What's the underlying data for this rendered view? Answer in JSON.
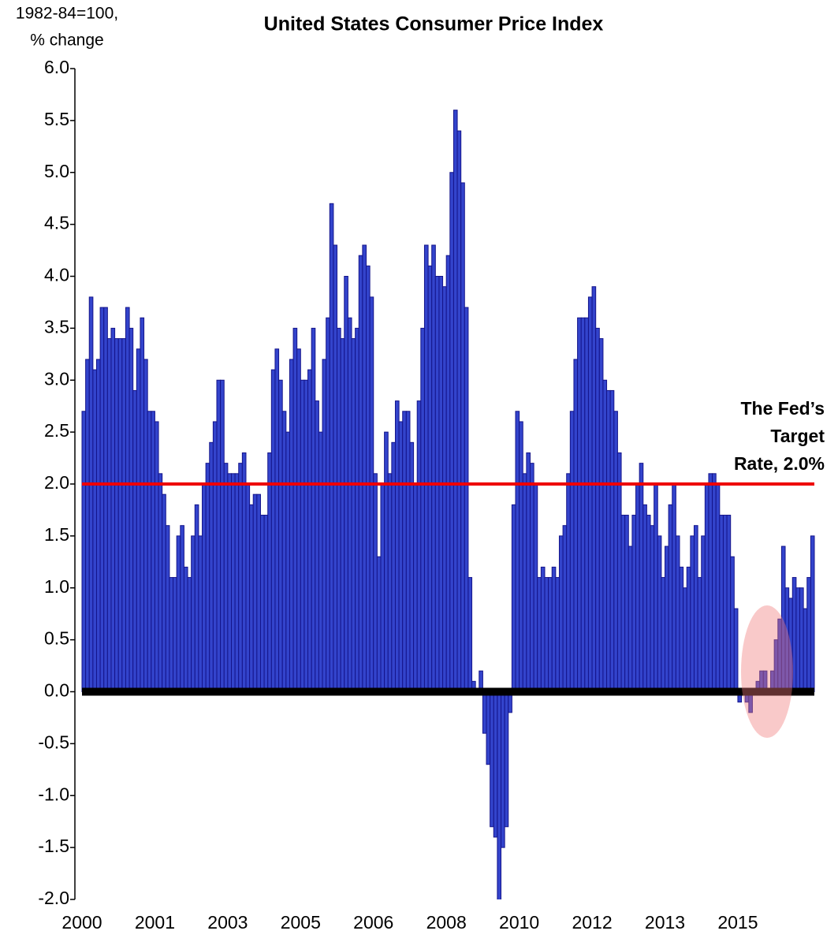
{
  "chart_data": {
    "type": "bar",
    "title": "United States Consumer Price Index",
    "y_axis_label": [
      "1982-84=100,",
      "% change"
    ],
    "annotation": [
      "The Fed’s",
      "Target",
      "Rate, 2.0%"
    ],
    "target": 2.0,
    "target_color": "#ee0000",
    "color": "#3344cc",
    "edge_color": "#14148a",
    "grid": false,
    "categories": [
      "2000",
      null,
      null,
      null,
      null,
      null,
      null,
      null,
      null,
      null,
      null,
      null,
      null,
      null,
      null,
      null,
      null,
      null,
      null,
      null,
      "2001",
      null,
      null,
      null,
      null,
      null,
      null,
      null,
      null,
      null,
      null,
      null,
      null,
      null,
      null,
      null,
      null,
      null,
      null,
      null,
      "2003",
      null,
      null,
      null,
      null,
      null,
      null,
      null,
      null,
      null,
      null,
      null,
      null,
      null,
      null,
      null,
      null,
      null,
      null,
      null,
      "2005",
      null,
      null,
      null,
      null,
      null,
      null,
      null,
      null,
      null,
      null,
      null,
      null,
      null,
      null,
      null,
      null,
      null,
      null,
      null,
      "2006",
      null,
      null,
      null,
      null,
      null,
      null,
      null,
      null,
      null,
      null,
      null,
      null,
      null,
      null,
      null,
      null,
      null,
      null,
      null,
      "2008",
      null,
      null,
      null,
      null,
      null,
      null,
      null,
      null,
      null,
      null,
      null,
      null,
      null,
      null,
      null,
      null,
      null,
      null,
      null,
      "2010",
      null,
      null,
      null,
      null,
      null,
      null,
      null,
      null,
      null,
      null,
      null,
      null,
      null,
      null,
      null,
      null,
      null,
      null,
      null,
      "2012",
      null,
      null,
      null,
      null,
      null,
      null,
      null,
      null,
      null,
      null,
      null,
      null,
      null,
      null,
      null,
      null,
      null,
      null,
      null,
      "2013",
      null,
      null,
      null,
      null,
      null,
      null,
      null,
      null,
      null,
      null,
      null,
      null,
      null,
      null,
      null,
      null,
      null,
      null,
      null,
      "2015",
      null,
      null,
      null,
      null,
      null,
      null,
      null,
      null,
      null,
      null,
      null,
      null,
      null,
      null,
      null,
      null,
      null,
      null,
      null,
      null
    ],
    "values": [
      2.7,
      3.2,
      3.8,
      3.1,
      3.2,
      3.7,
      3.7,
      3.4,
      3.5,
      3.4,
      3.4,
      3.4,
      3.7,
      3.5,
      2.9,
      3.3,
      3.6,
      3.2,
      2.7,
      2.7,
      2.6,
      2.1,
      1.9,
      1.6,
      1.1,
      1.1,
      1.5,
      1.6,
      1.2,
      1.1,
      1.5,
      1.8,
      1.5,
      2.0,
      2.2,
      2.4,
      2.6,
      3.0,
      3.0,
      2.2,
      2.1,
      2.1,
      2.1,
      2.2,
      2.3,
      2.0,
      1.8,
      1.9,
      1.9,
      1.7,
      1.7,
      2.3,
      3.1,
      3.3,
      3.0,
      2.7,
      2.5,
      3.2,
      3.5,
      3.3,
      3.0,
      3.0,
      3.1,
      3.5,
      2.8,
      2.5,
      3.2,
      3.6,
      4.7,
      4.3,
      3.5,
      3.4,
      4.0,
      3.6,
      3.4,
      3.5,
      4.2,
      4.3,
      4.1,
      3.8,
      2.1,
      1.3,
      2.0,
      2.5,
      2.1,
      2.4,
      2.8,
      2.6,
      2.7,
      2.7,
      2.4,
      2.0,
      2.8,
      3.5,
      4.3,
      4.1,
      4.3,
      4.0,
      4.0,
      3.9,
      4.2,
      5.0,
      5.6,
      5.4,
      4.9,
      3.7,
      1.1,
      0.1,
      0.0,
      0.2,
      -0.4,
      -0.7,
      -1.3,
      -1.4,
      -2.1,
      -1.5,
      -1.3,
      -0.2,
      1.8,
      2.7,
      2.6,
      2.1,
      2.3,
      2.2,
      2.0,
      1.1,
      1.2,
      1.1,
      1.1,
      1.2,
      1.1,
      1.5,
      1.6,
      2.1,
      2.7,
      3.2,
      3.6,
      3.6,
      3.6,
      3.8,
      3.9,
      3.5,
      3.4,
      3.0,
      2.9,
      2.9,
      2.7,
      2.3,
      1.7,
      1.7,
      1.4,
      1.7,
      2.0,
      2.2,
      1.8,
      1.7,
      1.6,
      2.0,
      1.5,
      1.1,
      1.4,
      1.8,
      2.0,
      1.5,
      1.2,
      1.0,
      1.2,
      1.5,
      1.6,
      1.1,
      1.5,
      2.0,
      2.1,
      2.1,
      2.0,
      1.7,
      1.7,
      1.7,
      1.3,
      0.8,
      -0.1,
      0.0,
      -0.1,
      -0.2,
      0.0,
      0.1,
      0.2,
      0.2,
      0.0,
      0.2,
      0.5,
      0.7,
      1.4,
      1.0,
      0.9,
      1.1,
      1.0,
      1.0,
      0.8,
      1.1,
      1.5
    ],
    "ylim": [
      -2.0,
      6.0
    ],
    "yticks": [
      {
        "value": -2.0,
        "label": "-2.0"
      },
      -1.5,
      {
        "value": -1.0,
        "label": "-1.0"
      },
      -0.5,
      {
        "value": 0.0,
        "label": "0.0"
      },
      0.5,
      {
        "value": 1.0,
        "label": "1.0"
      },
      1.5,
      {
        "value": 2.0,
        "label": "2.0"
      },
      2.5,
      {
        "value": 3.0,
        "label": "3.0"
      },
      3.5,
      {
        "value": 4.0,
        "label": "4.0"
      },
      4.5,
      {
        "value": 5.0,
        "label": "5.0"
      },
      5.5,
      {
        "value": 6.0,
        "label": "6.0"
      }
    ]
  }
}
